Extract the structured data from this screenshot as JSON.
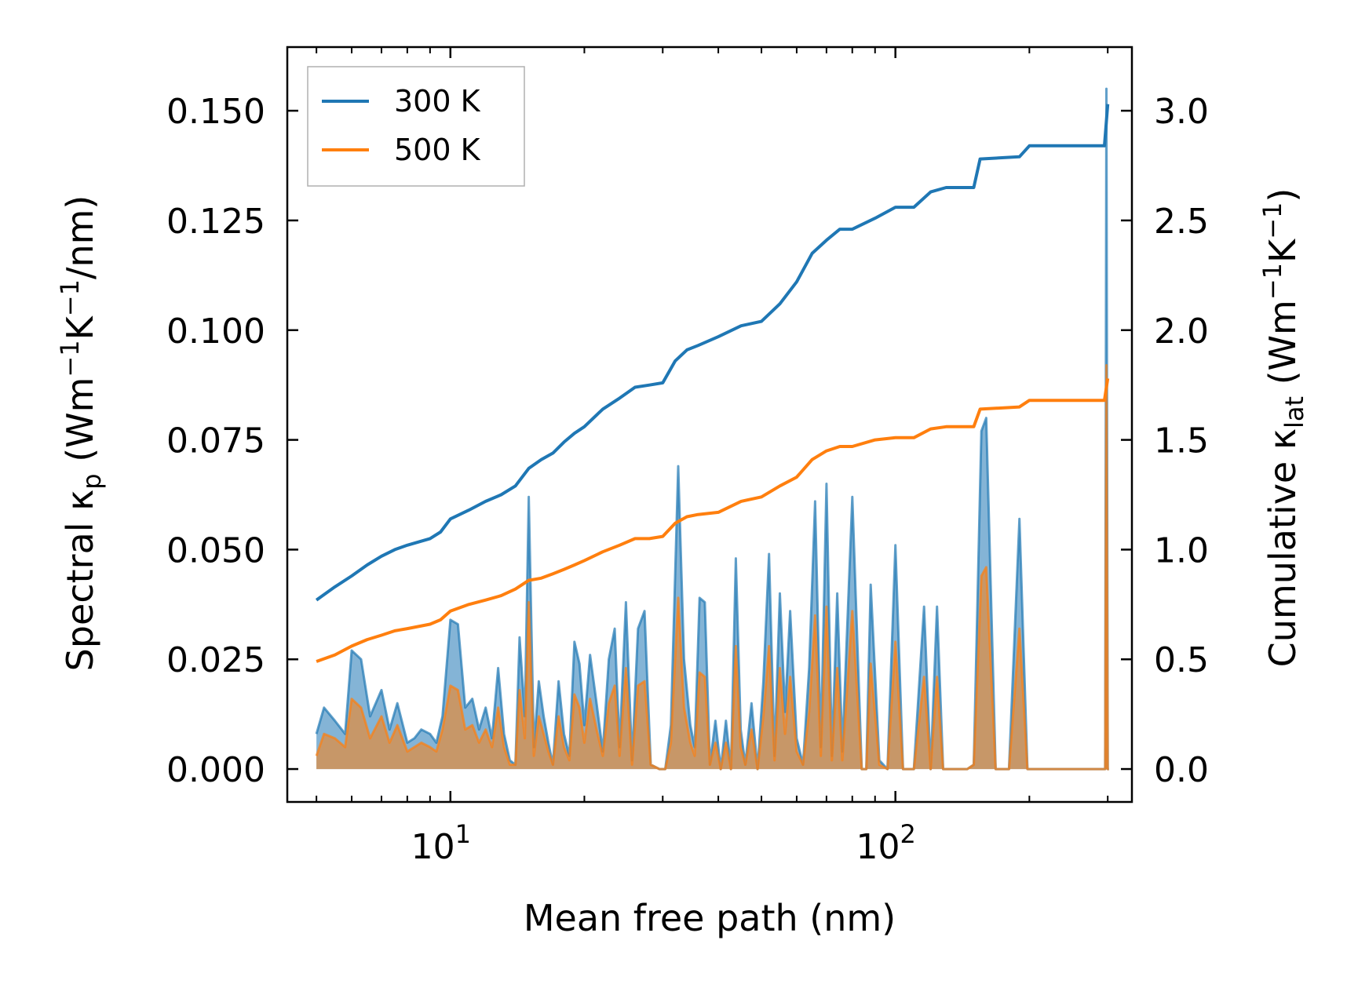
{
  "chart_data": {
    "type": "line",
    "xscale": "log",
    "xlabel": "Mean free path (nm)",
    "ylabel_left": {
      "main": "Spectral κ",
      "sub": "p",
      "unit_pre": " (Wm",
      "sup1": "−1",
      "unit_mid": "K",
      "sup2": "−1",
      "unit_post": "/nm)"
    },
    "ylabel_right": {
      "main": "Cumulative κ",
      "sub": "lat",
      "unit_pre": " (Wm",
      "sup1": "−1",
      "unit_mid": "K",
      "sup2": "−1",
      "unit_post": ")"
    },
    "xlim": [
      4.3,
      340
    ],
    "ylim_left": [
      -0.0075,
      0.1645
    ],
    "ylim_right": [
      -0.15,
      3.29
    ],
    "x_ticks": [
      {
        "value": 10,
        "base": "10",
        "exp": "1"
      },
      {
        "value": 100,
        "base": "10",
        "exp": "2"
      }
    ],
    "y_ticks_left": [
      "0.000",
      "0.025",
      "0.050",
      "0.075",
      "0.100",
      "0.125",
      "0.150"
    ],
    "y_ticks_right": [
      "0.0",
      "0.5",
      "1.0",
      "1.5",
      "2.0",
      "2.5",
      "3.0"
    ],
    "colors": {
      "300K": "#1f77b4",
      "500K": "#ff7f0e"
    },
    "legend": {
      "position": "top-left",
      "entries": [
        "300 K",
        "500 K"
      ]
    },
    "cumulative": [
      {
        "name": "300 K",
        "x": [
          5,
          5.5,
          6,
          6.5,
          7,
          7.5,
          8,
          9,
          9.5,
          10,
          11,
          12,
          13,
          14,
          15,
          16,
          17,
          18,
          19,
          20,
          22,
          24,
          26,
          28,
          30,
          32,
          34,
          36,
          40,
          45,
          50,
          55,
          60,
          65,
          70,
          75,
          80,
          90,
          100,
          110,
          120,
          130,
          150,
          155,
          190,
          200,
          295,
          300
        ],
        "y": [
          0.77,
          0.83,
          0.88,
          0.93,
          0.97,
          1.0,
          1.02,
          1.05,
          1.08,
          1.14,
          1.18,
          1.22,
          1.25,
          1.29,
          1.37,
          1.41,
          1.44,
          1.49,
          1.53,
          1.56,
          1.64,
          1.69,
          1.74,
          1.75,
          1.76,
          1.86,
          1.91,
          1.93,
          1.97,
          2.02,
          2.04,
          2.12,
          2.22,
          2.35,
          2.41,
          2.46,
          2.46,
          2.51,
          2.56,
          2.56,
          2.63,
          2.65,
          2.65,
          2.78,
          2.79,
          2.84,
          2.84,
          3.03
        ]
      },
      {
        "name": "500 K",
        "x": [
          5,
          5.5,
          6,
          6.5,
          7,
          7.5,
          8,
          9,
          9.5,
          10,
          11,
          12,
          13,
          14,
          15,
          16,
          17,
          18,
          19,
          20,
          22,
          24,
          26,
          28,
          30,
          32,
          34,
          36,
          40,
          45,
          50,
          55,
          60,
          65,
          70,
          75,
          80,
          90,
          100,
          110,
          120,
          130,
          150,
          155,
          190,
          200,
          295,
          300
        ],
        "y": [
          0.49,
          0.52,
          0.56,
          0.59,
          0.61,
          0.63,
          0.64,
          0.66,
          0.68,
          0.72,
          0.75,
          0.77,
          0.79,
          0.82,
          0.86,
          0.87,
          0.89,
          0.91,
          0.93,
          0.95,
          0.99,
          1.02,
          1.05,
          1.05,
          1.06,
          1.12,
          1.15,
          1.16,
          1.17,
          1.22,
          1.24,
          1.29,
          1.33,
          1.41,
          1.45,
          1.47,
          1.47,
          1.5,
          1.51,
          1.51,
          1.55,
          1.56,
          1.56,
          1.64,
          1.65,
          1.68,
          1.68,
          1.78
        ]
      }
    ],
    "spectral": [
      {
        "name": "300 K",
        "x": [
          5,
          5.2,
          5.5,
          5.8,
          6,
          6.3,
          6.6,
          7,
          7.3,
          7.6,
          8,
          8.3,
          8.6,
          9,
          9.3,
          9.6,
          10,
          10.4,
          10.8,
          11.2,
          11.6,
          12,
          12.4,
          12.8,
          13.2,
          13.6,
          14,
          14.3,
          14.7,
          15,
          15.4,
          15.8,
          16.2,
          16.6,
          17,
          17.5,
          18,
          18.5,
          19,
          19.5,
          20,
          20.6,
          21.3,
          22,
          22.7,
          23.4,
          24,
          24.8,
          25.6,
          26.4,
          27.3,
          28.2,
          29.5,
          30.4,
          31.3,
          32.5,
          33.5,
          34.6,
          35.4,
          36.3,
          37.3,
          38.3,
          39.4,
          40.5,
          41.6,
          42.7,
          43.8,
          44.9,
          46,
          47.5,
          49,
          50.5,
          52,
          53.5,
          55,
          56.5,
          58,
          60,
          62,
          64,
          66,
          68,
          70,
          72,
          74,
          76,
          80,
          84,
          86,
          88,
          92,
          96,
          100,
          104,
          110,
          116,
          120,
          124,
          128,
          132,
          136,
          145,
          150,
          156,
          160,
          168,
          180,
          190,
          198,
          210,
          250,
          290,
          296,
          298,
          300,
          302
        ],
        "y": [
          0.008,
          0.014,
          0.011,
          0.008,
          0.027,
          0.025,
          0.012,
          0.018,
          0.009,
          0.015,
          0.006,
          0.007,
          0.009,
          0.008,
          0.006,
          0.012,
          0.034,
          0.033,
          0.014,
          0.016,
          0.009,
          0.014,
          0.007,
          0.023,
          0.008,
          0.002,
          0.001,
          0.03,
          0.012,
          0.062,
          0.005,
          0.02,
          0.012,
          0.006,
          0.001,
          0.02,
          0.008,
          0.003,
          0.029,
          0.024,
          0.01,
          0.026,
          0.015,
          0.004,
          0.025,
          0.032,
          0.005,
          0.038,
          0.002,
          0.032,
          0.036,
          0.001,
          0.0,
          0.0,
          0.01,
          0.069,
          0.025,
          0.01,
          0.005,
          0.039,
          0.038,
          0.001,
          0.011,
          0.0,
          0.011,
          0.0,
          0.048,
          0.009,
          0.001,
          0.015,
          0.0,
          0.02,
          0.049,
          0.003,
          0.04,
          0.013,
          0.036,
          0.007,
          0.001,
          0.023,
          0.061,
          0.005,
          0.065,
          0.003,
          0.04,
          0.004,
          0.062,
          0.0,
          0.0,
          0.042,
          0.002,
          0.0,
          0.051,
          0.0,
          0.0,
          0.037,
          0.0,
          0.037,
          0.0,
          0.0,
          0.0,
          0.0,
          0.001,
          0.077,
          0.08,
          0.0,
          0.0,
          0.057,
          0.0,
          0.0,
          0.0,
          0.0,
          0.0,
          0.155,
          0.0,
          0.0
        ]
      },
      {
        "name": "500 K",
        "x": [
          5,
          5.2,
          5.5,
          5.8,
          6,
          6.3,
          6.6,
          7,
          7.3,
          7.6,
          8,
          8.3,
          8.6,
          9,
          9.3,
          9.6,
          10,
          10.4,
          10.8,
          11.2,
          11.6,
          12,
          12.4,
          12.8,
          13.2,
          13.6,
          14,
          14.3,
          14.7,
          15,
          15.4,
          15.8,
          16.2,
          16.6,
          17,
          17.5,
          18,
          18.5,
          19,
          19.5,
          20,
          20.6,
          21.3,
          22,
          22.7,
          23.4,
          24,
          24.8,
          25.6,
          26.4,
          27.3,
          28.2,
          29.5,
          30.4,
          31.3,
          32.5,
          33.5,
          34.6,
          35.4,
          36.3,
          37.3,
          38.3,
          39.4,
          40.5,
          41.6,
          42.7,
          43.8,
          44.9,
          46,
          47.5,
          49,
          50.5,
          52,
          53.5,
          55,
          56.5,
          58,
          60,
          62,
          64,
          66,
          68,
          70,
          72,
          74,
          76,
          80,
          84,
          86,
          88,
          92,
          96,
          100,
          104,
          110,
          116,
          120,
          124,
          128,
          132,
          136,
          145,
          150,
          156,
          160,
          168,
          180,
          190,
          198,
          210,
          250,
          290,
          296,
          298,
          300,
          302
        ],
        "y": [
          0.003,
          0.008,
          0.007,
          0.005,
          0.016,
          0.014,
          0.007,
          0.012,
          0.006,
          0.01,
          0.004,
          0.005,
          0.006,
          0.005,
          0.004,
          0.009,
          0.019,
          0.018,
          0.009,
          0.01,
          0.006,
          0.009,
          0.005,
          0.014,
          0.005,
          0.001,
          0.001,
          0.018,
          0.007,
          0.038,
          0.003,
          0.012,
          0.008,
          0.004,
          0.001,
          0.012,
          0.005,
          0.002,
          0.017,
          0.014,
          0.006,
          0.016,
          0.009,
          0.003,
          0.015,
          0.019,
          0.003,
          0.023,
          0.001,
          0.019,
          0.02,
          0.001,
          0.0,
          0.0,
          0.006,
          0.039,
          0.014,
          0.006,
          0.003,
          0.022,
          0.021,
          0.001,
          0.006,
          0.0,
          0.006,
          0.0,
          0.028,
          0.005,
          0.001,
          0.009,
          0.0,
          0.012,
          0.028,
          0.002,
          0.023,
          0.008,
          0.021,
          0.004,
          0.001,
          0.013,
          0.035,
          0.003,
          0.037,
          0.002,
          0.023,
          0.002,
          0.036,
          0.0,
          0.0,
          0.024,
          0.001,
          0.0,
          0.029,
          0.0,
          0.0,
          0.021,
          0.0,
          0.021,
          0.0,
          0.0,
          0.0,
          0.0,
          0.001,
          0.044,
          0.046,
          0.0,
          0.0,
          0.032,
          0.0,
          0.0,
          0.0,
          0.0,
          0.0,
          0.092,
          0.0,
          0.0
        ]
      }
    ]
  }
}
